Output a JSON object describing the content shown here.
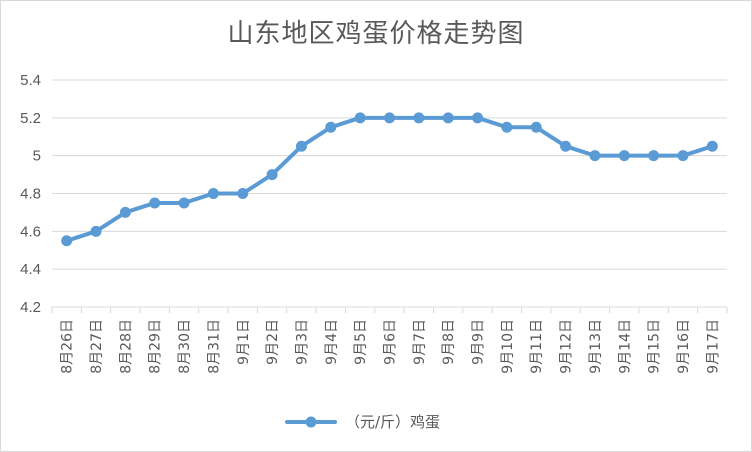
{
  "chart_data": {
    "type": "line",
    "title": "山东地区鸡蛋价格走势图",
    "categories": [
      "8月26日",
      "8月27日",
      "8月28日",
      "8月29日",
      "8月30日",
      "8月31日",
      "9月1日",
      "9月2日",
      "9月3日",
      "9月4日",
      "9月5日",
      "9月6日",
      "9月7日",
      "9月8日",
      "9月9日",
      "9月10日",
      "9月11日",
      "9月12日",
      "9月13日",
      "9月14日",
      "9月15日",
      "9月16日",
      "9月17日"
    ],
    "series": [
      {
        "name": "（元/斤）鸡蛋",
        "color": "#5b9bd5",
        "values": [
          4.55,
          4.6,
          4.7,
          4.75,
          4.75,
          4.8,
          4.8,
          4.9,
          5.05,
          5.15,
          5.2,
          5.2,
          5.2,
          5.2,
          5.2,
          5.15,
          5.15,
          5.05,
          5.0,
          5.0,
          5.0,
          5.0,
          5.05
        ]
      }
    ],
    "y_ticks": [
      "4.2",
      "4.4",
      "4.6",
      "4.8",
      "5",
      "5.2",
      "5.4"
    ],
    "ylim": [
      4.2,
      5.4
    ],
    "grid": true,
    "legend_position": "bottom"
  }
}
